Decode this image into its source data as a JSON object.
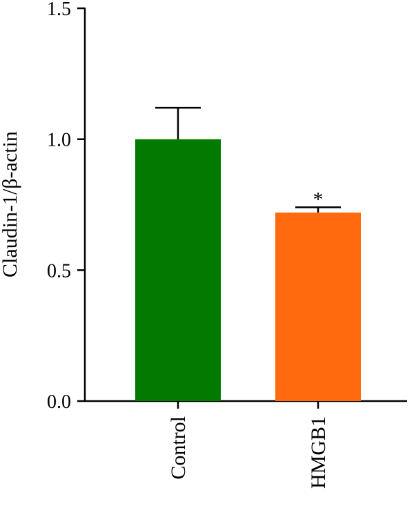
{
  "chart_data": {
    "type": "bar",
    "title": "",
    "xlabel": "",
    "ylabel": "Claudin-1/β-actin",
    "ylim": [
      0,
      1.5
    ],
    "yticks": [
      "0.0",
      "0.5",
      "1.0",
      "1.5"
    ],
    "ytick_values": [
      0,
      0.5,
      1.0,
      1.5
    ],
    "categories": [
      "Control",
      "HMGB1"
    ],
    "values": [
      1.0,
      0.72
    ],
    "error_upper": [
      0.12,
      0.02
    ],
    "significance": [
      "",
      "*"
    ],
    "colors": [
      "#027A00",
      "#FF6A0E"
    ],
    "grid": false,
    "legend": "none"
  }
}
